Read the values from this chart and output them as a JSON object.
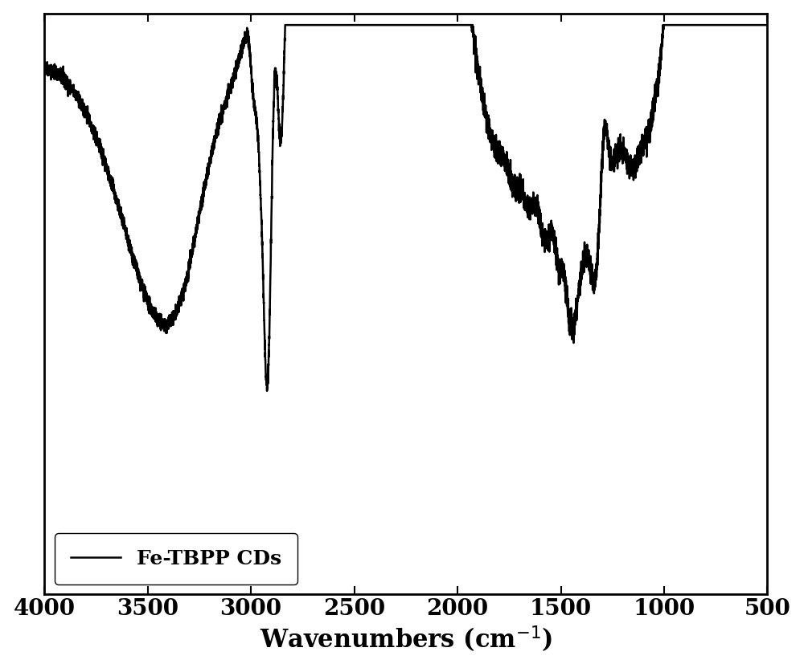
{
  "xlabel": "Wavenumbers (cm$^{-1}$)",
  "xlim": [
    4000,
    500
  ],
  "ylim": [
    0.0,
    1.0
  ],
  "legend_label": "Fe-TBPP CDs",
  "line_color": "#000000",
  "line_width": 1.8,
  "background_color": "#ffffff",
  "tick_label_fontsize": 20,
  "xlabel_fontsize": 22,
  "legend_fontsize": 18,
  "xticks": [
    4000,
    3500,
    3000,
    2500,
    2000,
    1500,
    1000,
    500
  ]
}
